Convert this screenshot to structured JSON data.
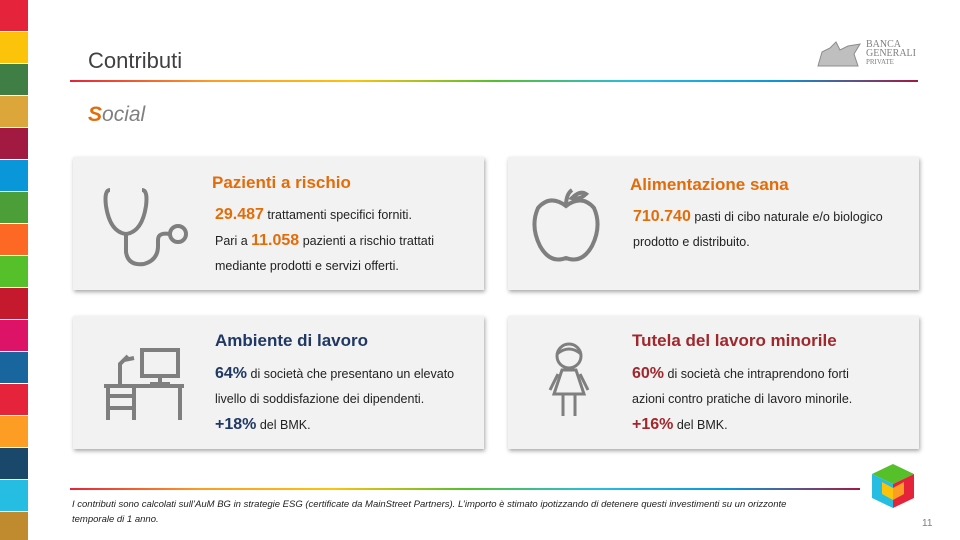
{
  "header": {
    "title": "Contributi",
    "subtitle": {
      "initial": "S",
      "rest": "ocial"
    },
    "logo": [
      "BANCA",
      "GENERALI",
      "PRIVATE"
    ]
  },
  "cards": [
    {
      "title": "Pazienti a rischio",
      "color": "#e36c0a",
      "body": [
        [
          {
            "text": "29.487",
            "strong": true
          },
          {
            "text": "trattamenti specifici forniti."
          }
        ],
        [
          {
            "text": "Pari a"
          },
          {
            "text": "11.058",
            "strong": true
          },
          {
            "text": "pazienti a rischio trattati mediante prodotti e servizi offerti."
          }
        ]
      ]
    },
    {
      "title": "Alimentazione sana",
      "color": "#e36c0a",
      "body": [
        [
          {
            "text": "710.740",
            "strong": true
          },
          {
            "text": "pasti di cibo naturale e/o biologico prodotto e distribuito."
          }
        ]
      ]
    },
    {
      "title": "Ambiente di lavoro",
      "color": "#1f3864",
      "body": [
        [
          {
            "text": "64%",
            "strong": true
          },
          {
            "text": "di società che presentano un elevato livello di soddisfazione dei dipendenti."
          },
          {
            "text": "+18%",
            "strong": true
          },
          {
            "text": "del BMK."
          }
        ]
      ]
    },
    {
      "title": "Tutela del lavoro minorile",
      "color": "#a0282d",
      "body": [
        [
          {
            "text": "60%",
            "strong": true
          },
          {
            "text": "di società che intraprendono forti azioni contro pratiche di lavoro minorile."
          },
          {
            "text": "+16%",
            "strong": true
          },
          {
            "text": "del BMK."
          }
        ]
      ]
    }
  ],
  "footer": {
    "note": "I contributi sono calcolati sull’AuM BG in strategie ESG (certificate da MainStreet Partners). L’importo è stimato ipotizzando di detenere questi investimenti su un orizzonte temporale di 1 anno.",
    "page": "11"
  }
}
